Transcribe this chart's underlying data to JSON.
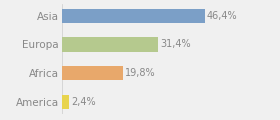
{
  "categories": [
    "America",
    "Africa",
    "Europa",
    "Asia"
  ],
  "values": [
    2.4,
    19.8,
    31.4,
    46.4
  ],
  "bar_colors": [
    "#e8d44d",
    "#e8a86b",
    "#b5c98e",
    "#7b9fc7"
  ],
  "labels": [
    "2,4%",
    "19,8%",
    "31,4%",
    "46,4%"
  ],
  "xlim": [
    0,
    60
  ],
  "background_color": "#f0f0f0",
  "text_color": "#888888",
  "bar_height": 0.5,
  "label_fontsize": 7,
  "tick_fontsize": 7.5
}
